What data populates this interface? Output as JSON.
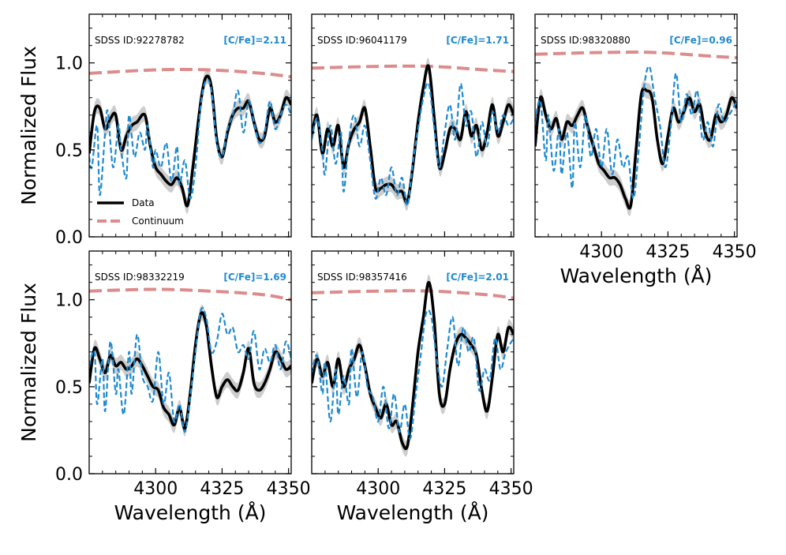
{
  "colors": {
    "data": "#000000",
    "model": "#1f8ad0",
    "continuum": "#dc8c8c",
    "band": "#c8c8c8"
  },
  "legend": {
    "data_label": "Data",
    "continuum_label": "Continuum"
  },
  "chart_data": [
    {
      "type": "line",
      "sdss_label": "SDSS ID:92278782",
      "cfe_label": "[C/Fe]=2.11",
      "xlim": [
        4275,
        4351
      ],
      "ylim": [
        0,
        1.28
      ],
      "xticks": [
        "4300",
        "4325",
        "4350"
      ],
      "yticks": [
        "0.0",
        "0.5",
        "1.0"
      ],
      "xlabel": "",
      "ylabel": "Normalized Flux",
      "show_x_tick_labels": false,
      "show_y_tick_labels": true,
      "show_legend": true,
      "continuum": [
        [
          4275,
          0.94
        ],
        [
          4300,
          0.96
        ],
        [
          4320,
          0.96
        ],
        [
          4340,
          0.94
        ],
        [
          4351,
          0.92
        ]
      ],
      "series": [
        {
          "name": "Data",
          "x": [
            4275,
            4277,
            4279,
            4281,
            4283,
            4285,
            4287,
            4289,
            4291,
            4293,
            4296,
            4298,
            4300,
            4302,
            4304,
            4306,
            4308,
            4310,
            4312,
            4314,
            4317,
            4319,
            4321,
            4323,
            4325,
            4327,
            4329,
            4331,
            4333,
            4335,
            4337,
            4339,
            4341,
            4343,
            4345,
            4347,
            4349,
            4351
          ],
          "y": [
            0.48,
            0.72,
            0.74,
            0.62,
            0.68,
            0.7,
            0.5,
            0.58,
            0.64,
            0.66,
            0.7,
            0.52,
            0.4,
            0.36,
            0.32,
            0.3,
            0.34,
            0.28,
            0.18,
            0.4,
            0.78,
            0.92,
            0.86,
            0.56,
            0.46,
            0.6,
            0.7,
            0.74,
            0.74,
            0.78,
            0.66,
            0.56,
            0.58,
            0.74,
            0.66,
            0.7,
            0.8,
            0.76
          ]
        },
        {
          "name": "Model",
          "x": [
            4275,
            4276,
            4278,
            4279,
            4281,
            4282,
            4284,
            4286,
            4287,
            4289,
            4290,
            4292,
            4294,
            4296,
            4297,
            4299,
            4300,
            4302,
            4304,
            4306,
            4308,
            4309,
            4311,
            4313,
            4315,
            4317,
            4319,
            4321,
            4323,
            4325,
            4327,
            4329,
            4331,
            4333,
            4335,
            4337,
            4339,
            4341,
            4343,
            4345,
            4347,
            4349,
            4351
          ],
          "y": [
            0.46,
            0.4,
            0.64,
            0.24,
            0.6,
            0.72,
            0.4,
            0.64,
            0.5,
            0.34,
            0.7,
            0.46,
            0.6,
            0.5,
            0.64,
            0.4,
            0.5,
            0.4,
            0.54,
            0.32,
            0.52,
            0.3,
            0.44,
            0.22,
            0.4,
            0.76,
            0.9,
            0.84,
            0.54,
            0.46,
            0.62,
            0.7,
            0.84,
            0.6,
            0.78,
            0.66,
            0.54,
            0.6,
            0.78,
            0.62,
            0.7,
            0.76,
            0.7
          ]
        }
      ]
    },
    {
      "type": "line",
      "sdss_label": "SDSS ID:96041179",
      "cfe_label": "[C/Fe]=1.71",
      "xlim": [
        4275,
        4351
      ],
      "ylim": [
        0,
        1.28
      ],
      "xticks": [
        "4300",
        "4325",
        "4350"
      ],
      "yticks": [
        "0.0",
        "0.5",
        "1.0"
      ],
      "xlabel": "",
      "ylabel": "",
      "show_x_tick_labels": false,
      "show_y_tick_labels": false,
      "show_legend": false,
      "continuum": [
        [
          4275,
          0.97
        ],
        [
          4300,
          0.98
        ],
        [
          4320,
          0.98
        ],
        [
          4340,
          0.96
        ],
        [
          4351,
          0.95
        ]
      ],
      "series": [
        {
          "name": "Data",
          "x": [
            4275,
            4277,
            4279,
            4281,
            4283,
            4285,
            4287,
            4289,
            4291,
            4293,
            4295,
            4297,
            4299,
            4301,
            4303,
            4305,
            4307,
            4309,
            4311,
            4313,
            4315,
            4317,
            4319,
            4321,
            4323,
            4325,
            4327,
            4329,
            4331,
            4333,
            4335,
            4337,
            4339,
            4341,
            4343,
            4345,
            4347,
            4349,
            4351
          ],
          "y": [
            0.58,
            0.7,
            0.48,
            0.62,
            0.52,
            0.64,
            0.4,
            0.54,
            0.62,
            0.66,
            0.74,
            0.52,
            0.28,
            0.28,
            0.3,
            0.3,
            0.26,
            0.26,
            0.2,
            0.4,
            0.66,
            0.86,
            0.98,
            0.7,
            0.4,
            0.48,
            0.62,
            0.62,
            0.56,
            0.72,
            0.58,
            0.64,
            0.5,
            0.6,
            0.76,
            0.58,
            0.66,
            0.76,
            0.7
          ]
        },
        {
          "name": "Model",
          "x": [
            4275,
            4277,
            4279,
            4280,
            4282,
            4284,
            4286,
            4287,
            4289,
            4291,
            4293,
            4295,
            4297,
            4299,
            4301,
            4303,
            4305,
            4307,
            4309,
            4311,
            4313,
            4315,
            4317,
            4319,
            4321,
            4323,
            4325,
            4327,
            4329,
            4331,
            4333,
            4335,
            4337,
            4339,
            4341,
            4343,
            4345,
            4347,
            4349,
            4351
          ],
          "y": [
            0.56,
            0.68,
            0.5,
            0.36,
            0.64,
            0.42,
            0.6,
            0.26,
            0.56,
            0.7,
            0.52,
            0.64,
            0.44,
            0.22,
            0.34,
            0.24,
            0.4,
            0.24,
            0.34,
            0.18,
            0.42,
            0.62,
            0.8,
            0.88,
            0.64,
            0.4,
            0.6,
            0.76,
            0.56,
            0.88,
            0.64,
            0.72,
            0.46,
            0.66,
            0.52,
            0.72,
            0.6,
            0.7,
            0.64,
            0.68
          ]
        }
      ]
    },
    {
      "type": "line",
      "sdss_label": "SDSS ID:98320880",
      "cfe_label": "[C/Fe]=0.96",
      "xlim": [
        4275,
        4351
      ],
      "ylim": [
        0,
        1.28
      ],
      "xticks": [
        "4300",
        "4325",
        "4350"
      ],
      "yticks": [
        "0.0",
        "0.5",
        "1.0"
      ],
      "xlabel": "Wavelength (Å)",
      "ylabel": "",
      "show_x_tick_labels": true,
      "show_y_tick_labels": false,
      "show_legend": false,
      "continuum": [
        [
          4275,
          1.05
        ],
        [
          4300,
          1.06
        ],
        [
          4320,
          1.06
        ],
        [
          4340,
          1.04
        ],
        [
          4351,
          1.03
        ]
      ],
      "series": [
        {
          "name": "Data",
          "x": [
            4275,
            4277,
            4279,
            4281,
            4283,
            4285,
            4287,
            4289,
            4291,
            4293,
            4295,
            4297,
            4299,
            4301,
            4303,
            4305,
            4307,
            4309,
            4311,
            4313,
            4315,
            4317,
            4319,
            4321,
            4323,
            4325,
            4327,
            4329,
            4331,
            4333,
            4335,
            4337,
            4339,
            4341,
            4343,
            4345,
            4347,
            4349,
            4351
          ],
          "y": [
            0.52,
            0.8,
            0.7,
            0.62,
            0.68,
            0.56,
            0.66,
            0.64,
            0.7,
            0.74,
            0.62,
            0.52,
            0.42,
            0.38,
            0.34,
            0.34,
            0.3,
            0.22,
            0.18,
            0.5,
            0.82,
            0.84,
            0.8,
            0.56,
            0.42,
            0.58,
            0.74,
            0.66,
            0.72,
            0.8,
            0.72,
            0.76,
            0.6,
            0.56,
            0.7,
            0.66,
            0.7,
            0.8,
            0.74
          ]
        },
        {
          "name": "Model",
          "x": [
            4275,
            4277,
            4279,
            4280,
            4282,
            4284,
            4285,
            4287,
            4289,
            4290,
            4292,
            4294,
            4296,
            4298,
            4300,
            4302,
            4304,
            4306,
            4308,
            4310,
            4312,
            4314,
            4316,
            4318,
            4320,
            4322,
            4324,
            4326,
            4328,
            4330,
            4332,
            4334,
            4336,
            4338,
            4340,
            4342,
            4344,
            4346,
            4348,
            4351
          ],
          "y": [
            0.66,
            0.78,
            0.44,
            0.7,
            0.38,
            0.62,
            0.36,
            0.6,
            0.28,
            0.66,
            0.4,
            0.7,
            0.46,
            0.62,
            0.4,
            0.62,
            0.36,
            0.56,
            0.4,
            0.46,
            0.22,
            0.5,
            0.86,
            0.98,
            0.8,
            0.64,
            0.4,
            0.62,
            0.94,
            0.66,
            0.82,
            0.7,
            0.84,
            0.56,
            0.66,
            0.52,
            0.76,
            0.66,
            0.7,
            0.78
          ]
        }
      ]
    },
    {
      "type": "line",
      "sdss_label": "SDSS ID:98332219",
      "cfe_label": "[C/Fe]=1.69",
      "xlim": [
        4275,
        4351
      ],
      "ylim": [
        0,
        1.28
      ],
      "xticks": [
        "4300",
        "4325",
        "4350"
      ],
      "yticks": [
        "0.0",
        "0.5",
        "1.0"
      ],
      "xlabel": "Wavelength (Å)",
      "ylabel": "Normalized Flux",
      "show_x_tick_labels": true,
      "show_y_tick_labels": true,
      "show_legend": false,
      "continuum": [
        [
          4275,
          1.05
        ],
        [
          4300,
          1.06
        ],
        [
          4320,
          1.05
        ],
        [
          4340,
          1.03
        ],
        [
          4351,
          1.0
        ]
      ],
      "series": [
        {
          "name": "Data",
          "x": [
            4275,
            4277,
            4279,
            4281,
            4283,
            4285,
            4287,
            4289,
            4291,
            4293,
            4295,
            4297,
            4299,
            4301,
            4303,
            4305,
            4307,
            4309,
            4311,
            4313,
            4315,
            4317,
            4319,
            4321,
            4323,
            4325,
            4327,
            4329,
            4331,
            4333,
            4335,
            4337,
            4339,
            4341,
            4343,
            4345,
            4347,
            4349,
            4351
          ],
          "y": [
            0.52,
            0.72,
            0.66,
            0.58,
            0.68,
            0.62,
            0.64,
            0.6,
            0.62,
            0.66,
            0.62,
            0.56,
            0.5,
            0.48,
            0.38,
            0.34,
            0.28,
            0.38,
            0.26,
            0.46,
            0.74,
            0.92,
            0.86,
            0.62,
            0.44,
            0.5,
            0.54,
            0.5,
            0.48,
            0.58,
            0.72,
            0.52,
            0.48,
            0.52,
            0.6,
            0.7,
            0.66,
            0.6,
            0.62
          ]
        },
        {
          "name": "Model",
          "x": [
            4275,
            4277,
            4278,
            4280,
            4281,
            4283,
            4285,
            4286,
            4288,
            4290,
            4291,
            4293,
            4295,
            4297,
            4299,
            4301,
            4303,
            4305,
            4307,
            4309,
            4311,
            4313,
            4315,
            4317,
            4319,
            4321,
            4323,
            4325,
            4327,
            4329,
            4331,
            4333,
            4335,
            4337,
            4339,
            4341,
            4343,
            4345,
            4347,
            4349,
            4351
          ],
          "y": [
            0.62,
            0.7,
            0.4,
            0.66,
            0.36,
            0.76,
            0.46,
            0.6,
            0.34,
            0.7,
            0.46,
            0.8,
            0.56,
            0.5,
            0.42,
            0.7,
            0.4,
            0.58,
            0.3,
            0.4,
            0.24,
            0.44,
            0.7,
            0.94,
            0.9,
            0.7,
            0.76,
            0.92,
            0.8,
            0.84,
            0.7,
            0.74,
            0.66,
            0.82,
            0.6,
            0.72,
            0.64,
            0.74,
            0.6,
            0.76,
            0.66
          ]
        }
      ]
    },
    {
      "type": "line",
      "sdss_label": "SDSS ID:98357416",
      "cfe_label": "[C/Fe]=2.01",
      "xlim": [
        4275,
        4351
      ],
      "ylim": [
        0,
        1.28
      ],
      "xticks": [
        "4300",
        "4325",
        "4350"
      ],
      "yticks": [
        "0.0",
        "0.5",
        "1.0"
      ],
      "xlabel": "Wavelength (Å)",
      "ylabel": "",
      "show_x_tick_labels": true,
      "show_y_tick_labels": false,
      "show_legend": false,
      "continuum": [
        [
          4275,
          1.04
        ],
        [
          4300,
          1.05
        ],
        [
          4320,
          1.05
        ],
        [
          4340,
          1.03
        ],
        [
          4351,
          1.01
        ]
      ],
      "series": [
        {
          "name": "Data",
          "x": [
            4275,
            4277,
            4279,
            4281,
            4283,
            4285,
            4287,
            4289,
            4291,
            4293,
            4295,
            4297,
            4299,
            4301,
            4303,
            4305,
            4307,
            4309,
            4311,
            4313,
            4315,
            4317,
            4319,
            4321,
            4323,
            4325,
            4327,
            4329,
            4331,
            4333,
            4335,
            4337,
            4339,
            4341,
            4343,
            4345,
            4347,
            4349,
            4351
          ],
          "y": [
            0.52,
            0.66,
            0.56,
            0.64,
            0.5,
            0.66,
            0.5,
            0.6,
            0.66,
            0.74,
            0.62,
            0.46,
            0.38,
            0.32,
            0.4,
            0.28,
            0.3,
            0.18,
            0.16,
            0.4,
            0.7,
            0.9,
            1.1,
            0.9,
            0.46,
            0.4,
            0.6,
            0.74,
            0.8,
            0.78,
            0.74,
            0.68,
            0.48,
            0.36,
            0.56,
            0.8,
            0.7,
            0.84,
            0.8
          ]
        },
        {
          "name": "Model",
          "x": [
            4275,
            4277,
            4279,
            4280,
            4282,
            4284,
            4285,
            4287,
            4289,
            4290,
            4292,
            4294,
            4296,
            4298,
            4300,
            4302,
            4304,
            4306,
            4308,
            4310,
            4312,
            4314,
            4316,
            4318,
            4320,
            4322,
            4324,
            4326,
            4328,
            4330,
            4332,
            4334,
            4336,
            4338,
            4340,
            4342,
            4344,
            4346,
            4348,
            4351
          ],
          "y": [
            0.58,
            0.68,
            0.46,
            0.64,
            0.3,
            0.6,
            0.34,
            0.56,
            0.4,
            0.72,
            0.44,
            0.7,
            0.5,
            0.44,
            0.3,
            0.5,
            0.26,
            0.46,
            0.24,
            0.4,
            0.2,
            0.44,
            0.68,
            0.92,
            0.9,
            0.66,
            0.5,
            0.72,
            0.9,
            0.62,
            0.84,
            0.7,
            0.78,
            0.48,
            0.6,
            0.54,
            0.78,
            0.6,
            0.7,
            0.78
          ]
        }
      ]
    }
  ]
}
